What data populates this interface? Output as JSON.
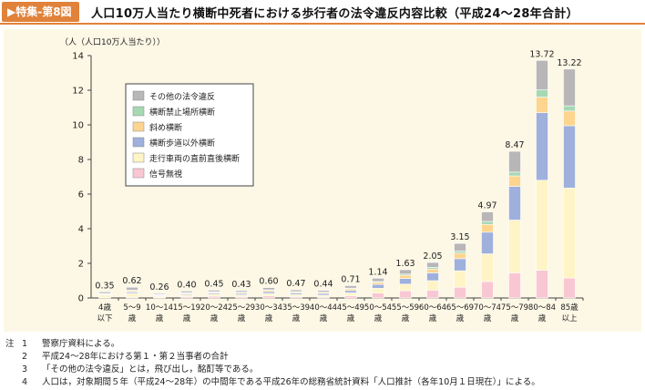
{
  "header": {
    "badge": "▶特集-第8図",
    "title": "人口10万人当たり横断中死者における歩行者の法令違反内容比較（平成24～28年合計）"
  },
  "chart_data": {
    "type": "bar",
    "stacked": true,
    "ylabel": "（人（人口10万人当たり））",
    "ylim": [
      0,
      14
    ],
    "yticks": [
      "0",
      "2",
      "4",
      "6",
      "8",
      "10",
      "12",
      "14"
    ],
    "grid": false,
    "legend_position": "top-left",
    "categories": [
      "4歳以下",
      "5～9歳",
      "10～14歳",
      "15～19歳",
      "20～24歳",
      "25～29歳",
      "30～34歳",
      "35～39歳",
      "40～44歳",
      "45～49歳",
      "50～54歳",
      "55～59歳",
      "60～64歳",
      "65～69歳",
      "70～74歳",
      "75～79歳",
      "80～84歳",
      "85歳以上"
    ],
    "category_lines": [
      [
        "4歳",
        "以下"
      ],
      [
        "5～9",
        "歳"
      ],
      [
        "10～14",
        "歳"
      ],
      [
        "15～19",
        "歳"
      ],
      [
        "20～24",
        "歳"
      ],
      [
        "25～29",
        "歳"
      ],
      [
        "30～34",
        "歳"
      ],
      [
        "35～39",
        "歳"
      ],
      [
        "40～44",
        "歳"
      ],
      [
        "45～49",
        "歳"
      ],
      [
        "50～54",
        "歳"
      ],
      [
        "55～59",
        "歳"
      ],
      [
        "60～64",
        "歳"
      ],
      [
        "65～69",
        "歳"
      ],
      [
        "70～74",
        "歳"
      ],
      [
        "75～79",
        "歳"
      ],
      [
        "80～84",
        "歳"
      ],
      [
        "85歳",
        "以上"
      ]
    ],
    "totals": [
      "0.35",
      "0.62",
      "0.26",
      "0.40",
      "0.45",
      "0.43",
      "0.60",
      "0.47",
      "0.44",
      "0.71",
      "1.14",
      "1.63",
      "2.05",
      "3.15",
      "4.97",
      "8.47",
      "13.72",
      "13.22"
    ],
    "series": [
      {
        "name": "信号無視",
        "color": "#f9c7d3",
        "values": [
          0.02,
          0.05,
          0.03,
          0.08,
          0.1,
          0.08,
          0.12,
          0.08,
          0.06,
          0.12,
          0.28,
          0.42,
          0.45,
          0.62,
          0.95,
          1.45,
          1.6,
          1.15
        ]
      },
      {
        "name": "走行車両の直前直後横断",
        "color": "#fff4c6",
        "values": [
          0.15,
          0.22,
          0.07,
          0.1,
          0.12,
          0.1,
          0.14,
          0.12,
          0.1,
          0.18,
          0.28,
          0.38,
          0.55,
          0.95,
          1.6,
          3.05,
          5.2,
          5.2
        ]
      },
      {
        "name": "横断歩道以外横断",
        "color": "#9fb0dc",
        "values": [
          0.04,
          0.08,
          0.04,
          0.06,
          0.07,
          0.08,
          0.1,
          0.09,
          0.1,
          0.13,
          0.22,
          0.33,
          0.45,
          0.7,
          1.25,
          1.95,
          3.9,
          3.6
        ]
      },
      {
        "name": "斜め横断",
        "color": "#fdd58f",
        "values": [
          0.03,
          0.07,
          0.04,
          0.05,
          0.05,
          0.06,
          0.08,
          0.06,
          0.06,
          0.1,
          0.12,
          0.18,
          0.22,
          0.32,
          0.45,
          0.6,
          0.9,
          0.85
        ]
      },
      {
        "name": "横断禁止場所横断",
        "color": "#a7d8b4",
        "values": [
          0.02,
          0.03,
          0.02,
          0.02,
          0.02,
          0.02,
          0.03,
          0.02,
          0.02,
          0.04,
          0.05,
          0.07,
          0.1,
          0.12,
          0.17,
          0.22,
          0.42,
          0.3
        ]
      },
      {
        "name": "その他の法令違反",
        "color": "#b8b6b6",
        "values": [
          0.09,
          0.17,
          0.06,
          0.09,
          0.09,
          0.09,
          0.13,
          0.1,
          0.1,
          0.14,
          0.19,
          0.25,
          0.28,
          0.44,
          0.55,
          1.2,
          1.7,
          2.12
        ]
      }
    ]
  },
  "notes": [
    {
      "mark": "注",
      "num": "1",
      "text": "警察庁資料による。"
    },
    {
      "mark": "",
      "num": "2",
      "text": "平成24～28年における第１・第２当事者の合計"
    },
    {
      "mark": "",
      "num": "3",
      "text": "「その他の法令違反」とは，飛び出し，酩酊等である。"
    },
    {
      "mark": "",
      "num": "4",
      "text": "人口は，対象期間５年（平成24～28年）の中間年である平成26年の総務省統計資料「人口推計（各年10月１日現在）」による。"
    }
  ]
}
